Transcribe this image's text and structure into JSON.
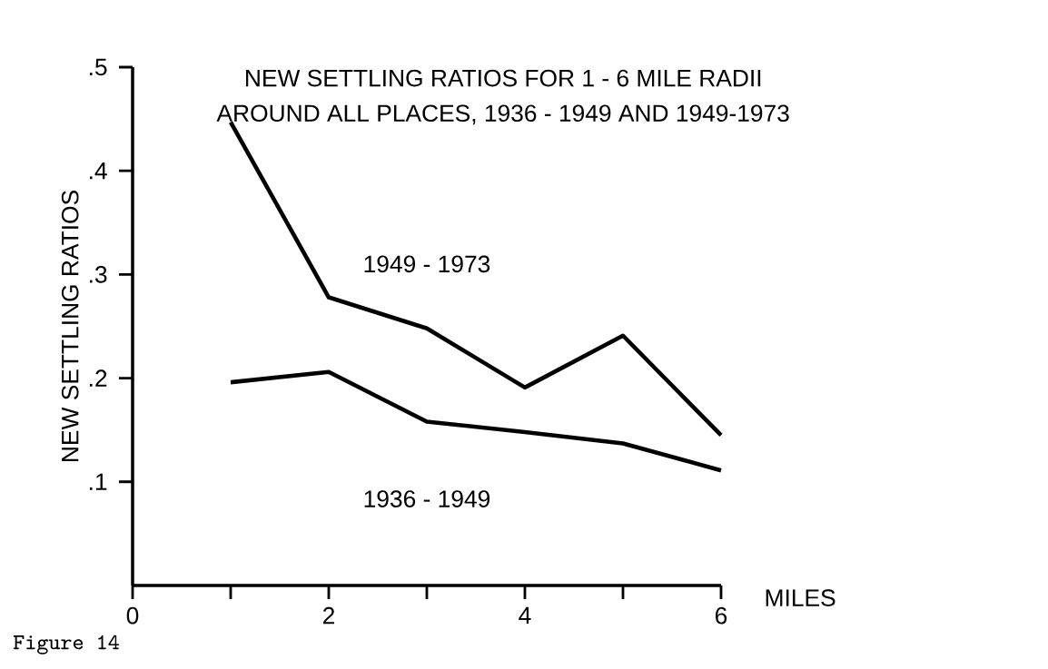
{
  "chart_data": {
    "type": "line",
    "title": "NEW SETTLING RATIOS FOR 1 - 6 MILE RADII",
    "subtitle": "AROUND ALL PLACES, 1936 - 1949 AND 1949-1973",
    "xlabel": "MILES",
    "ylabel": "NEW SETTLING RATIOS",
    "annotations": [
      "Figure 14"
    ],
    "x": [
      1,
      2,
      3,
      4,
      5,
      6
    ],
    "series": [
      {
        "name": "1949 - 1973",
        "color": "#000000",
        "values": [
          0.447,
          0.278,
          0.248,
          0.191,
          0.241,
          0.145
        ]
      },
      {
        "name": "1936 - 1949",
        "color": "#000000",
        "values": [
          0.196,
          0.206,
          0.158,
          0.148,
          0.137,
          0.111
        ]
      }
    ],
    "xlim": [
      0,
      6
    ],
    "ylim": [
      0,
      0.5
    ],
    "xticks": [
      {
        "value": 0,
        "label": "0"
      },
      {
        "value": 1,
        "label": null
      },
      2,
      {
        "value": 3,
        "label": null
      },
      4,
      {
        "value": 5,
        "label": null
      },
      6
    ],
    "yticks": [
      {
        "value": 0.1,
        "label": ".1"
      },
      {
        "value": 0.2,
        "label": ".2"
      },
      {
        "value": 0.3,
        "label": ".3"
      },
      {
        "value": 0.4,
        "label": ".4"
      },
      {
        "value": 0.5,
        "label": ".5"
      }
    ],
    "grid": false,
    "legend": false,
    "marker": "none",
    "line_style": "solid"
  }
}
